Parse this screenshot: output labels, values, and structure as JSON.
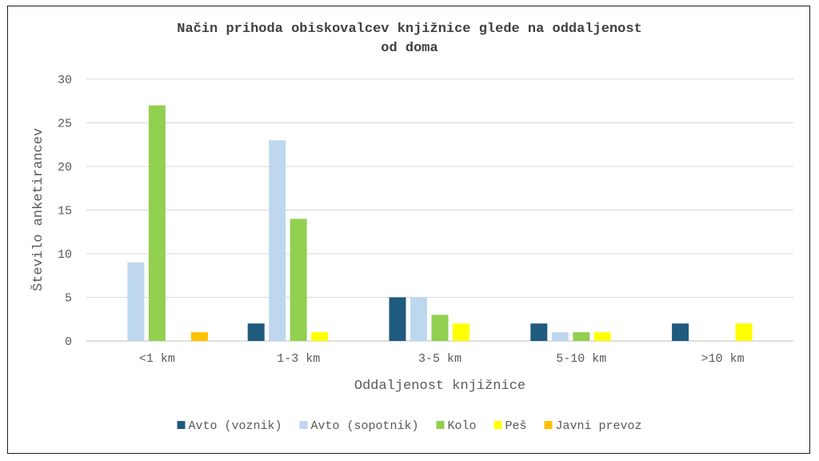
{
  "chart_data": {
    "type": "bar",
    "title_lines": [
      "Način prihoda obiskovalcev knjižnice glede na oddaljenost",
      "od doma"
    ],
    "xlabel": "Oddaljenost knjižnice",
    "ylabel": "Število anketirancev",
    "categories": [
      "<1 km",
      "1-3 km",
      "3-5 km",
      "5-10 km",
      ">10 km"
    ],
    "ylim": [
      0,
      30
    ],
    "yticks": [
      "0",
      "5",
      "10",
      "15",
      "20",
      "25",
      "30"
    ],
    "grid": true,
    "legend_position": "bottom",
    "series": [
      {
        "name": "Avto (voznik)",
        "color": "#1f5a7f",
        "values": [
          0,
          2,
          5,
          2,
          2
        ]
      },
      {
        "name": "Avto (sopotnik)",
        "color": "#bdd7ee",
        "values": [
          9,
          23,
          5,
          1,
          0
        ]
      },
      {
        "name": "Kolo",
        "color": "#92d050",
        "values": [
          27,
          14,
          3,
          1,
          0
        ]
      },
      {
        "name": "Peš",
        "color": "#ffff00",
        "values": [
          0,
          1,
          2,
          1,
          2
        ]
      },
      {
        "name": "Javni prevoz",
        "color": "#ffc000",
        "values": [
          1,
          0,
          0,
          0,
          0
        ]
      }
    ]
  }
}
